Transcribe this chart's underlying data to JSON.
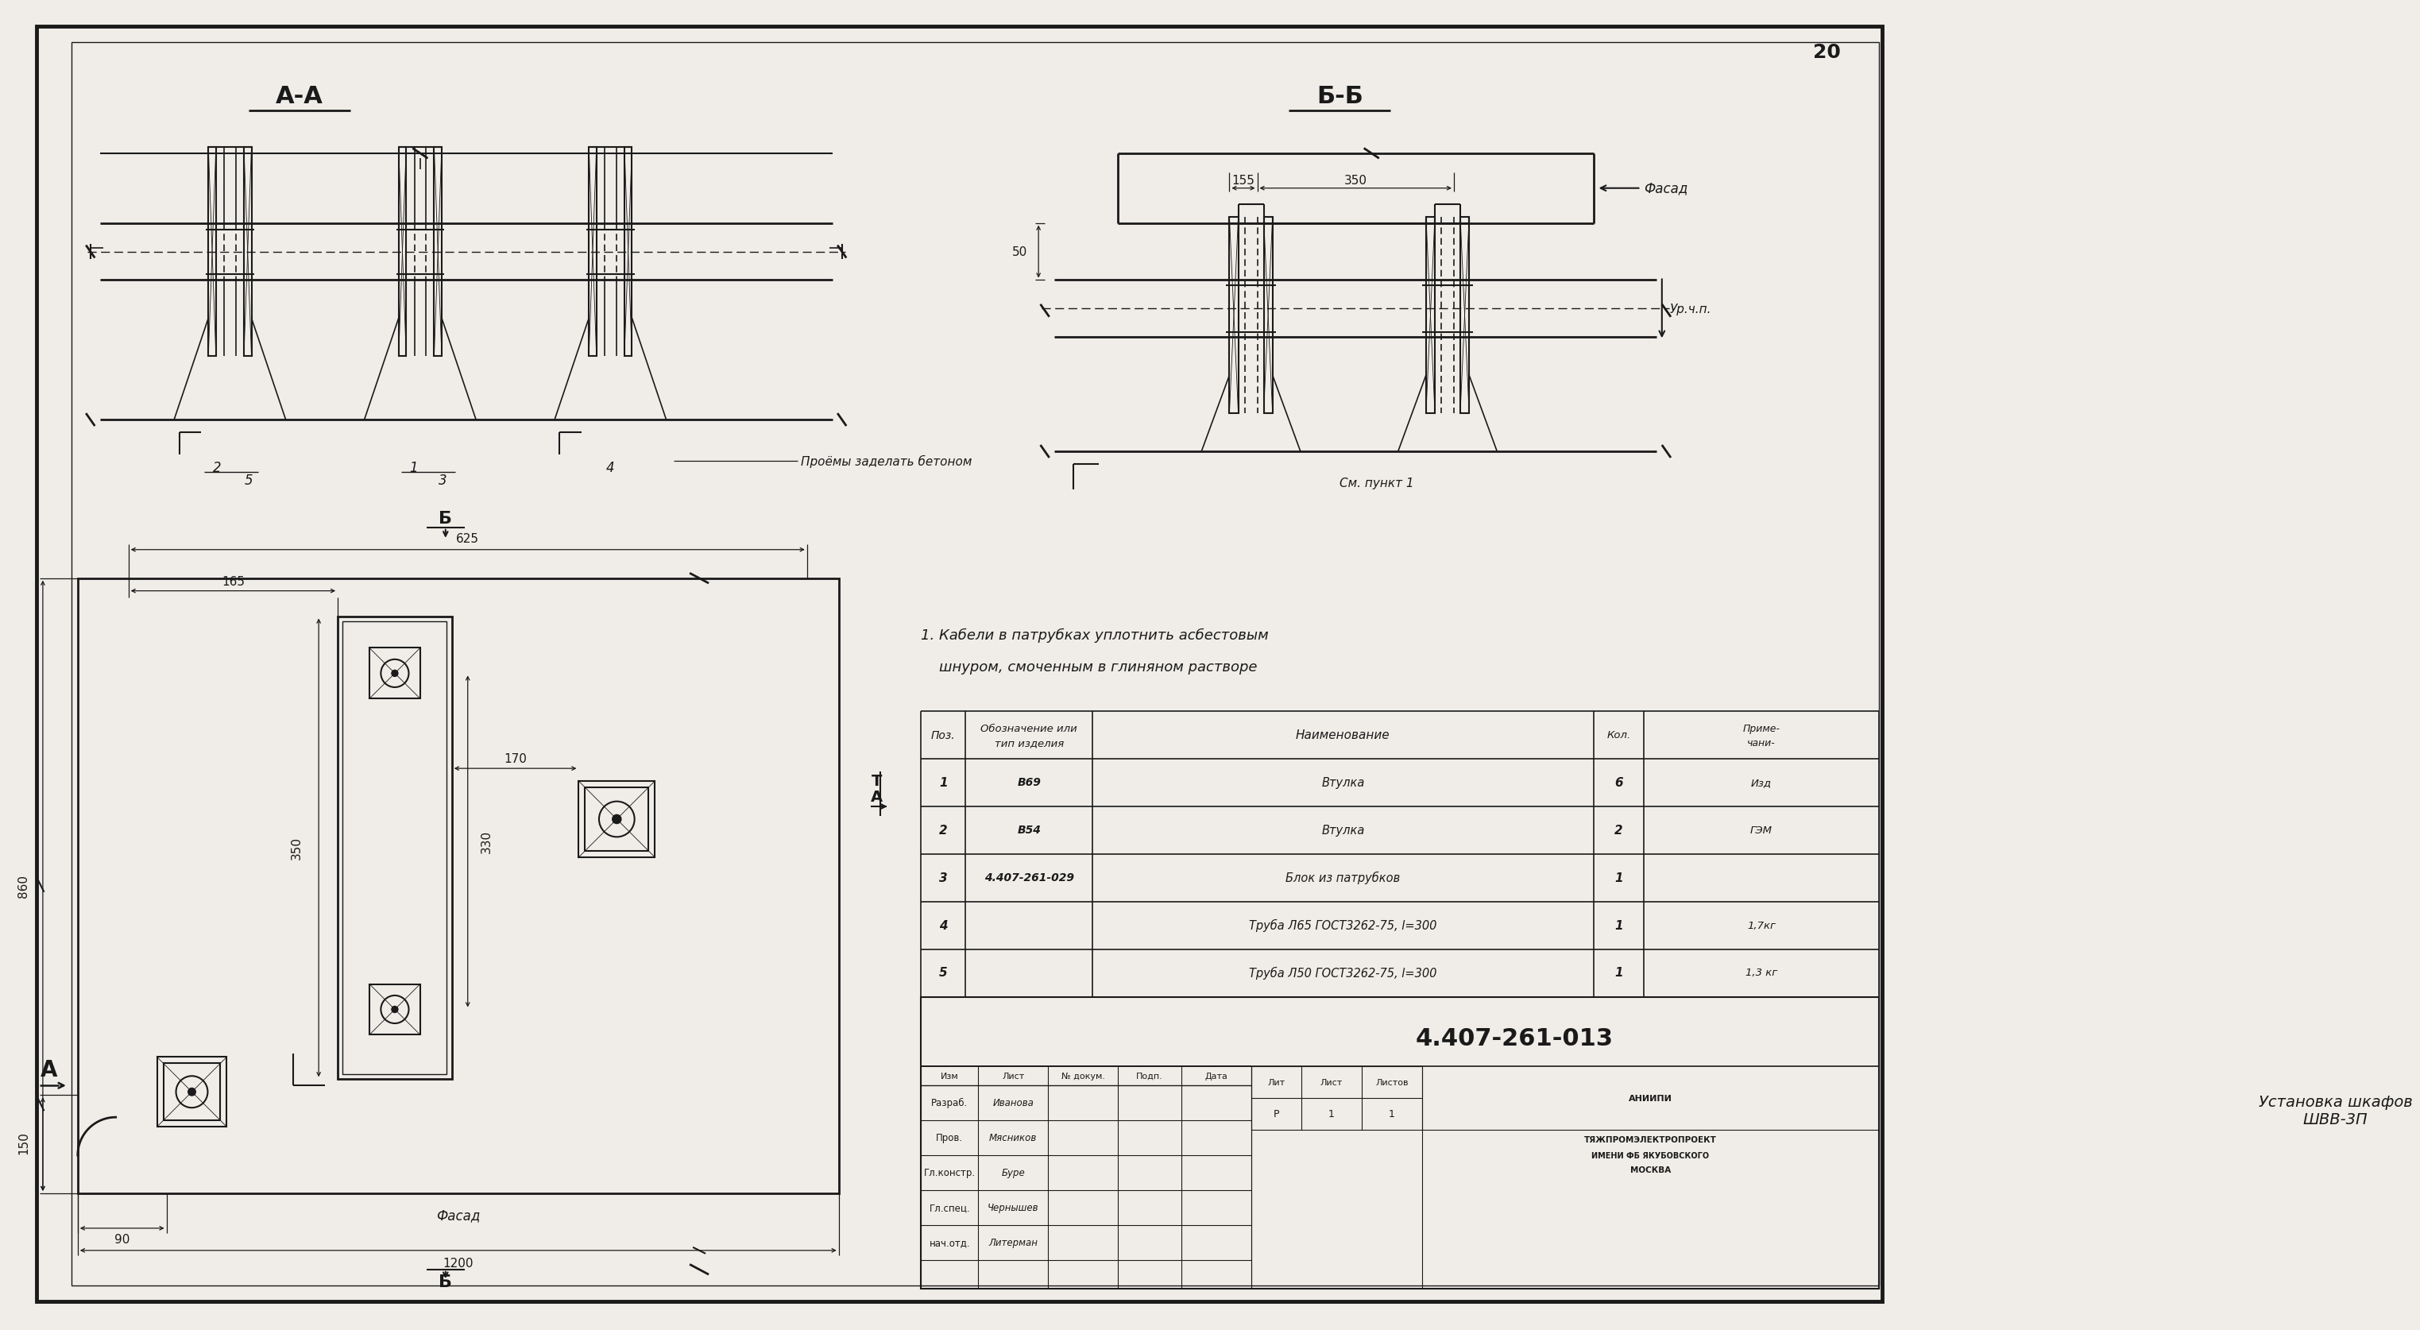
{
  "bg_color": "#f0ede8",
  "line_color": "#1a1a1a",
  "title_AA": "А-А",
  "title_BB": "Б-Б",
  "note_line1": "1. Кабели в патрубках уплотнить асбестовым",
  "note_line2": "    шнуром, смоченным в глиняном растворе",
  "table_rows": [
    [
      "1",
      "В69",
      "Втулка",
      "6",
      "Изд"
    ],
    [
      "2",
      "В54",
      "Втулка",
      "2",
      "ГЭМ"
    ],
    [
      "3",
      "4.407-261-029",
      "Блок из патрубков",
      "1",
      ""
    ],
    [
      "4",
      "",
      "Труба Л65 ГОСТ3262-75, l=300",
      "1",
      "1,7кг"
    ],
    [
      "5",
      "",
      "Труба Л50 ГОСТ3262-75, l=300",
      "1",
      "1,3 кг"
    ]
  ],
  "doc_number": "4.407-261-013",
  "title_name": "Установка шкафов\nШВВ-3П",
  "org_name": "АНИИПИ\nТЯЖПРОМЭЛЕКТРОПРОЕКТ\nИМЕНИ ФБ ЯКУБОВСКОГО\nМОСКВА",
  "sheet_num": "20",
  "staff_rows": [
    [
      "Разраб.",
      "Иванова"
    ],
    [
      "Пров.",
      "Мясников"
    ],
    [
      "Гл.констр.",
      "Буре"
    ],
    [
      "Гл.спец.",
      "Чернышев"
    ],
    [
      "нач.отд.",
      "Литерман"
    ]
  ],
  "liter": "Р",
  "list_num": "1",
  "listov": "1"
}
